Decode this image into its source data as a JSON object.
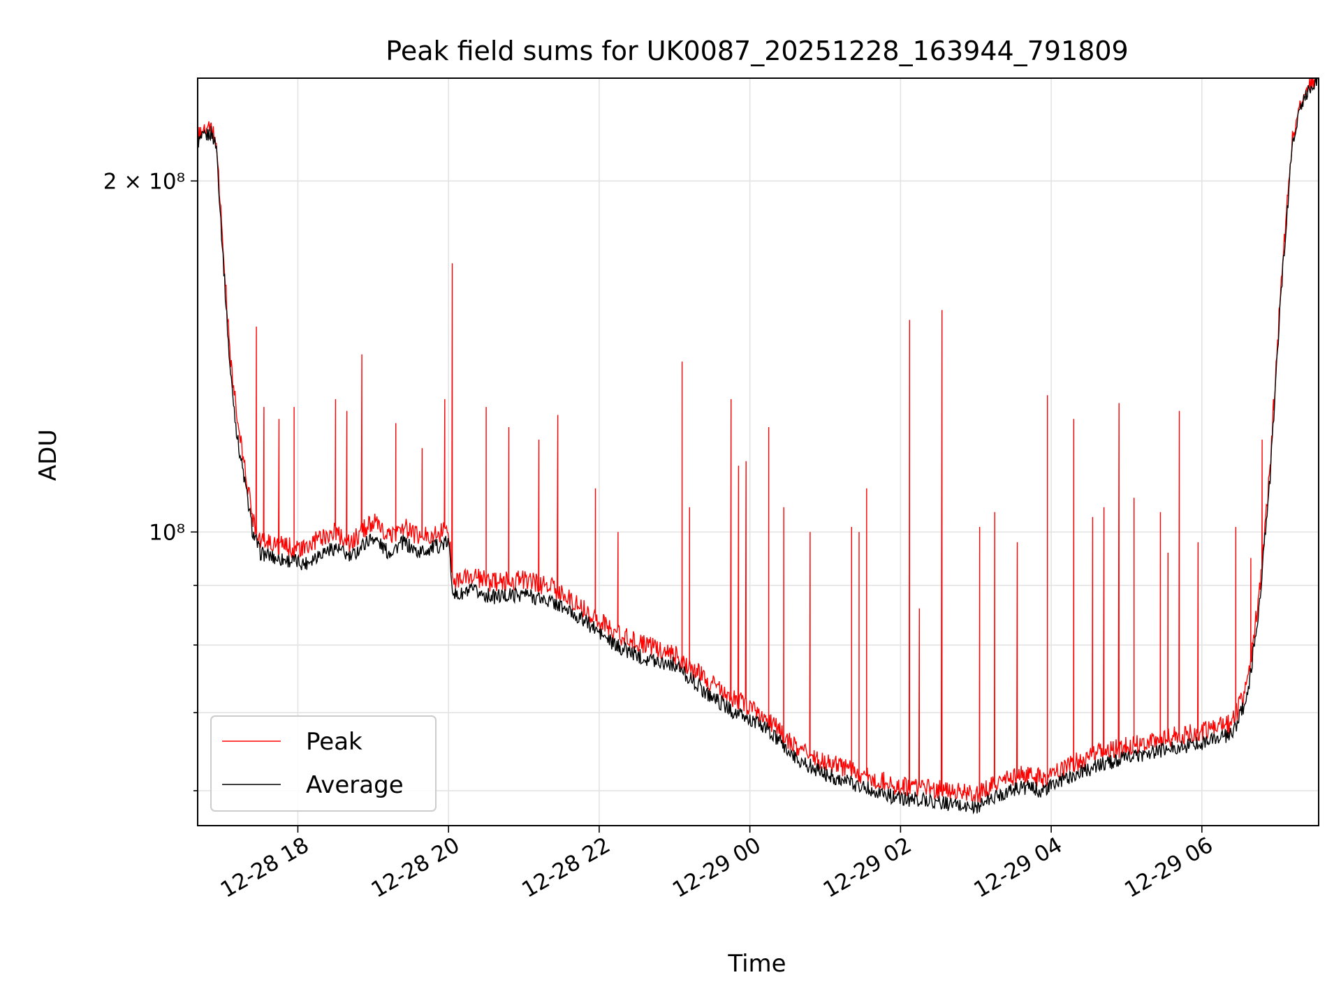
{
  "chart_data": {
    "type": "line",
    "title": "Peak field sums for UK0087_20251228_163944_791809",
    "xlabel": "Time",
    "ylabel": "ADU",
    "y_scale": "log",
    "ylim": [
      56000000,
      245000000
    ],
    "x_range_hours": [
      16.67,
      7.55
    ],
    "x_ticks": [
      {
        "label": "12-28 18",
        "hour": 18
      },
      {
        "label": "12-28 20",
        "hour": 20
      },
      {
        "label": "12-28 22",
        "hour": 22
      },
      {
        "label": "12-29 00",
        "hour": 24
      },
      {
        "label": "12-29 02",
        "hour": 26
      },
      {
        "label": "12-29 04",
        "hour": 28
      },
      {
        "label": "12-29 06",
        "hour": 30
      }
    ],
    "y_major_ticks": [
      {
        "label": "2 × 10⁸",
        "value": 200000000
      },
      {
        "label": "10⁸",
        "value": 100000000
      }
    ],
    "y_minor_ticks": [
      60000000,
      70000000,
      80000000,
      90000000
    ],
    "legend": {
      "location": "lower-left",
      "peak_label": "Peak",
      "average_label": "Average"
    },
    "grid": true,
    "series": [
      {
        "name": "Average",
        "color": "#000000",
        "x": [
          16.67,
          16.85,
          16.92,
          17.0,
          17.1,
          17.2,
          17.3,
          17.4,
          17.5,
          17.7,
          17.9,
          18.1,
          18.3,
          18.5,
          18.7,
          18.9,
          19.0,
          19.2,
          19.4,
          19.6,
          19.8,
          20.0,
          20.05,
          20.1,
          20.3,
          20.6,
          21.0,
          21.4,
          21.8,
          22.2,
          22.6,
          23.0,
          23.4,
          23.8,
          24.2,
          24.6,
          25.0,
          25.5,
          26.0,
          26.3,
          26.6,
          27.0,
          27.3,
          27.6,
          27.9,
          28.2,
          28.6,
          29.0,
          29.5,
          30.0,
          30.4,
          30.6,
          30.75,
          30.9,
          31.05,
          31.2,
          31.35,
          31.55
        ],
        "y": [
          216000000,
          220000000,
          214000000,
          175000000,
          138000000,
          120000000,
          110000000,
          100000000,
          96000000,
          95000000,
          94500000,
          94000000,
          96000000,
          97000000,
          95000000,
          98000000,
          99000000,
          96000000,
          98000000,
          96000000,
          97000000,
          98000000,
          90000000,
          88000000,
          89000000,
          88000000,
          88500000,
          87000000,
          84000000,
          80000000,
          78000000,
          77000000,
          73000000,
          70000000,
          68000000,
          64000000,
          62000000,
          60500000,
          59000000,
          59000000,
          58500000,
          58000000,
          59500000,
          60500000,
          60000000,
          61500000,
          63000000,
          64000000,
          65000000,
          66000000,
          67000000,
          72000000,
          85000000,
          110000000,
          160000000,
          215000000,
          236000000,
          245000000
        ]
      },
      {
        "name": "Peak",
        "color": "#ff0000",
        "x": [
          16.67,
          16.85,
          16.92,
          17.0,
          17.1,
          17.2,
          17.3,
          17.4,
          17.5,
          17.7,
          17.9,
          18.1,
          18.3,
          18.5,
          18.7,
          18.9,
          19.0,
          19.2,
          19.4,
          19.6,
          19.8,
          20.0,
          20.05,
          20.1,
          20.3,
          20.6,
          21.0,
          21.4,
          21.8,
          22.2,
          22.6,
          23.0,
          23.4,
          23.8,
          24.2,
          24.6,
          25.0,
          25.5,
          26.0,
          26.3,
          26.6,
          27.0,
          27.3,
          27.6,
          27.9,
          28.2,
          28.6,
          29.0,
          29.5,
          30.0,
          30.4,
          30.6,
          30.75,
          30.9,
          31.05,
          31.2,
          31.35,
          31.55
        ],
        "y": [
          218000000,
          222000000,
          216000000,
          178000000,
          142000000,
          124000000,
          113000000,
          103000000,
          98500000,
          97500000,
          97000000,
          96500000,
          99000000,
          100000000,
          97500000,
          101000000,
          102000000,
          99000000,
          101000000,
          99000000,
          99500000,
          100500000,
          92000000,
          91000000,
          91500000,
          90500000,
          91000000,
          89500000,
          86000000,
          82000000,
          80000000,
          78500000,
          75000000,
          72000000,
          69500000,
          65500000,
          63500000,
          62000000,
          60500000,
          60500000,
          60000000,
          59500000,
          61000000,
          62000000,
          61500000,
          63000000,
          64500000,
          65500000,
          66500000,
          67500000,
          68500000,
          74000000,
          87000000,
          112000000,
          163000000,
          217000000,
          237000000,
          246000000
        ],
        "spikes": [
          [
            17.45,
            150000000
          ],
          [
            17.55,
            128000000
          ],
          [
            17.75,
            125000000
          ],
          [
            17.95,
            128000000
          ],
          [
            18.5,
            130000000
          ],
          [
            18.65,
            127000000
          ],
          [
            18.85,
            142000000
          ],
          [
            19.3,
            124000000
          ],
          [
            19.65,
            118000000
          ],
          [
            19.95,
            130000000
          ],
          [
            20.05,
            170000000
          ],
          [
            20.5,
            128000000
          ],
          [
            20.8,
            123000000
          ],
          [
            21.2,
            120000000
          ],
          [
            21.45,
            126000000
          ],
          [
            21.95,
            109000000
          ],
          [
            22.25,
            100000000
          ],
          [
            23.1,
            140000000
          ],
          [
            23.2,
            105000000
          ],
          [
            23.75,
            130000000
          ],
          [
            23.85,
            114000000
          ],
          [
            23.95,
            115000000
          ],
          [
            24.25,
            123000000
          ],
          [
            24.45,
            105000000
          ],
          [
            24.8,
            100000000
          ],
          [
            25.35,
            101000000
          ],
          [
            25.45,
            100000000
          ],
          [
            25.55,
            109000000
          ],
          [
            26.12,
            152000000
          ],
          [
            26.25,
            86000000
          ],
          [
            26.55,
            155000000
          ],
          [
            27.05,
            101000000
          ],
          [
            27.25,
            104000000
          ],
          [
            27.55,
            98000000
          ],
          [
            27.95,
            131000000
          ],
          [
            28.3,
            125000000
          ],
          [
            28.55,
            103000000
          ],
          [
            28.7,
            105000000
          ],
          [
            28.9,
            129000000
          ],
          [
            29.1,
            107000000
          ],
          [
            29.45,
            104000000
          ],
          [
            29.55,
            96000000
          ],
          [
            29.7,
            127000000
          ],
          [
            29.95,
            98000000
          ],
          [
            30.45,
            101000000
          ],
          [
            30.65,
            95000000
          ],
          [
            30.8,
            120000000
          ],
          [
            30.95,
            130000000
          ]
        ]
      }
    ]
  }
}
